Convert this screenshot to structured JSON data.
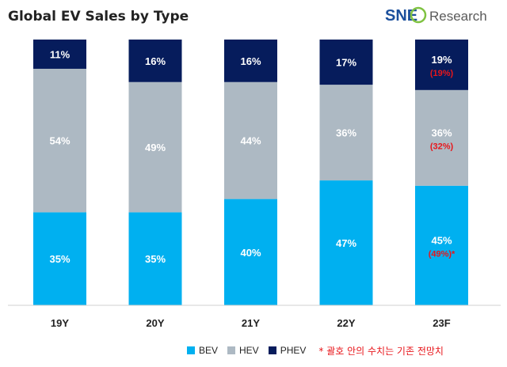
{
  "chart_data": {
    "type": "bar",
    "stacked": true,
    "title": "Global EV Sales by Type",
    "categories": [
      "19Y",
      "20Y",
      "21Y",
      "22Y",
      "23F"
    ],
    "series": [
      {
        "name": "BEV",
        "color": "#00b0f0",
        "values": [
          35,
          35,
          40,
          47,
          45
        ],
        "labels": [
          "35%",
          "35%",
          "40%",
          "47%",
          "45%"
        ]
      },
      {
        "name": "HEV",
        "color": "#adb9c3",
        "values": [
          54,
          49,
          44,
          36,
          36
        ],
        "labels": [
          "54%",
          "49%",
          "44%",
          "36%",
          "36%"
        ]
      },
      {
        "name": "PHEV",
        "color": "#061c5c",
        "values": [
          11,
          16,
          16,
          17,
          19
        ],
        "labels": [
          "11%",
          "16%",
          "16%",
          "17%",
          "19%"
        ]
      }
    ],
    "annotations": [
      {
        "series": "BEV",
        "category": "23F",
        "text": "(49%)*"
      },
      {
        "series": "HEV",
        "category": "23F",
        "text": "(32%)"
      },
      {
        "series": "PHEV",
        "category": "23F",
        "text": "(19%)"
      }
    ],
    "ylim": [
      0,
      100
    ],
    "xlabel": "",
    "ylabel": "",
    "legend_position": "bottom"
  },
  "logo": {
    "brand": "SNE",
    "suffix": "Research"
  },
  "legend_note": "* 괄호 안의 수치는 기존 전망치",
  "colors": {
    "bev": "#00b0f0",
    "hev": "#adb9c3",
    "phev": "#061c5c",
    "annotation": "#e8161b"
  }
}
